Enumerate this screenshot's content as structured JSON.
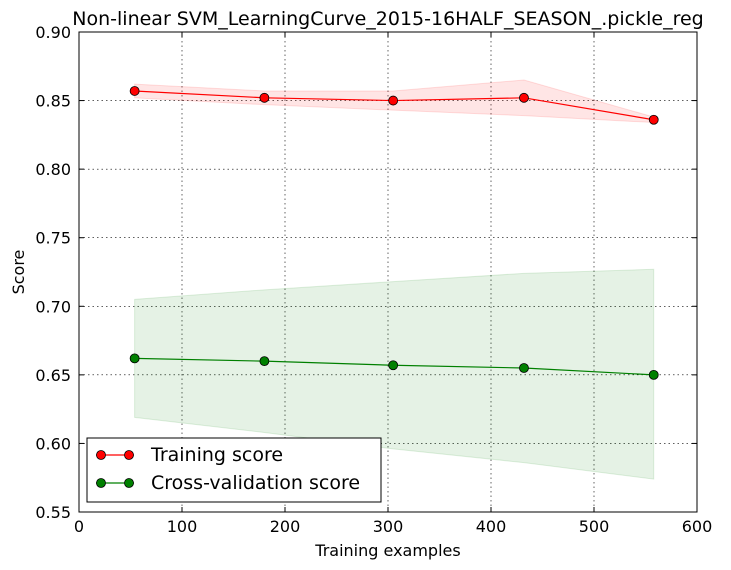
{
  "chart_data": {
    "type": "line",
    "title": "Non-linear SVM_LearningCurve_2015-16HALF_SEASON_.pickle_reg",
    "xlabel": "Training examples",
    "ylabel": "Score",
    "xlim": [
      0,
      600
    ],
    "ylim": [
      0.55,
      0.9
    ],
    "xticks": [
      0,
      100,
      200,
      300,
      400,
      500,
      600
    ],
    "yticks": [
      0.55,
      0.6,
      0.65,
      0.7,
      0.75,
      0.8,
      0.85,
      0.9
    ],
    "xtick_labels": [
      "0",
      "100",
      "200",
      "300",
      "400",
      "500",
      "600"
    ],
    "ytick_labels": [
      "0.55",
      "0.60",
      "0.65",
      "0.70",
      "0.75",
      "0.80",
      "0.85",
      "0.90"
    ],
    "grid": true,
    "legend_position": "lower-left",
    "x": [
      54,
      180,
      305,
      432,
      558
    ],
    "series": [
      {
        "name": "Training score",
        "color": "#ff0000",
        "values": [
          0.857,
          0.852,
          0.85,
          0.852,
          0.836
        ],
        "band_upper": [
          0.862,
          0.857,
          0.857,
          0.865,
          0.838
        ],
        "band_lower": [
          0.852,
          0.847,
          0.843,
          0.839,
          0.834
        ]
      },
      {
        "name": "Cross-validation score",
        "color": "#008000",
        "values": [
          0.662,
          0.66,
          0.657,
          0.655,
          0.65
        ],
        "band_upper": [
          0.705,
          0.712,
          0.718,
          0.724,
          0.727
        ],
        "band_lower": [
          0.619,
          0.608,
          0.596,
          0.586,
          0.574
        ]
      }
    ]
  }
}
